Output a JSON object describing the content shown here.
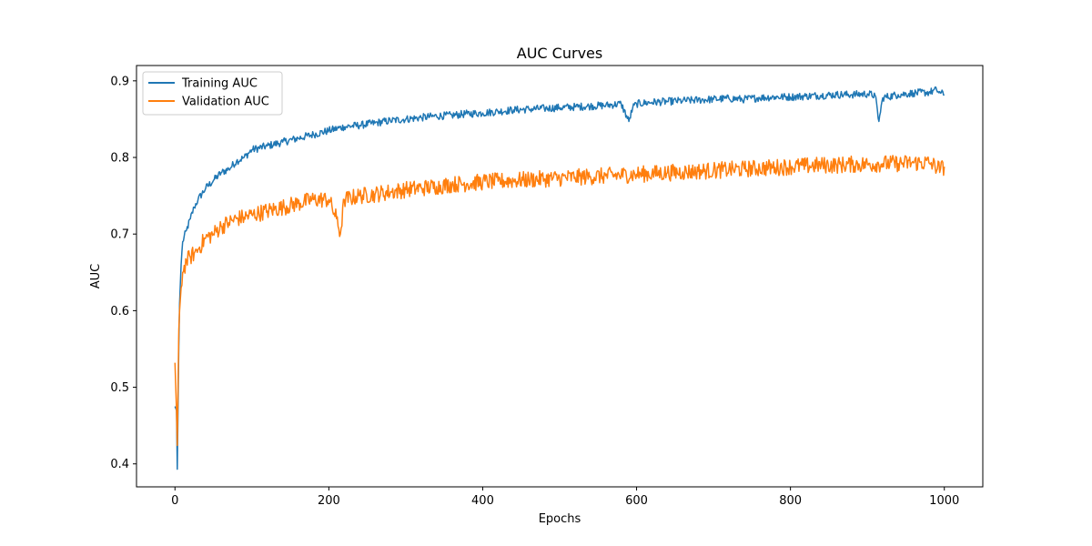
{
  "chart_data": {
    "type": "line",
    "title": "AUC Curves",
    "xlabel": "Epochs",
    "ylabel": "AUC",
    "xlim": [
      -50,
      1050
    ],
    "ylim": [
      0.37,
      0.92
    ],
    "xticks": [
      0,
      200,
      400,
      600,
      800,
      1000
    ],
    "xtick_labels": [
      "0",
      "200",
      "400",
      "600",
      "800",
      "1000"
    ],
    "yticks": [
      0.4,
      0.5,
      0.6,
      0.7,
      0.8,
      0.9
    ],
    "ytick_labels": [
      "0.4",
      "0.5",
      "0.6",
      "0.7",
      "0.8",
      "0.9"
    ],
    "grid": false,
    "legend_position": "top-left",
    "series": [
      {
        "name": "Training AUC",
        "color": "#1f77b4",
        "x": [
          0,
          2,
          3,
          5,
          6,
          8,
          10,
          15,
          20,
          25,
          30,
          40,
          50,
          60,
          70,
          80,
          90,
          100,
          120,
          140,
          160,
          180,
          200,
          220,
          240,
          260,
          280,
          300,
          320,
          340,
          360,
          380,
          400,
          420,
          440,
          460,
          480,
          500,
          520,
          540,
          560,
          580,
          590,
          595,
          600,
          620,
          640,
          660,
          680,
          700,
          720,
          740,
          760,
          780,
          800,
          820,
          840,
          860,
          880,
          900,
          910,
          915,
          920,
          940,
          960,
          980,
          990,
          995,
          1000
        ],
        "y": [
          0.475,
          0.47,
          0.393,
          0.555,
          0.61,
          0.66,
          0.69,
          0.705,
          0.72,
          0.735,
          0.745,
          0.76,
          0.77,
          0.78,
          0.785,
          0.795,
          0.8,
          0.81,
          0.815,
          0.82,
          0.825,
          0.83,
          0.835,
          0.84,
          0.842,
          0.845,
          0.848,
          0.85,
          0.852,
          0.854,
          0.855,
          0.857,
          0.858,
          0.86,
          0.862,
          0.863,
          0.864,
          0.865,
          0.866,
          0.867,
          0.868,
          0.87,
          0.847,
          0.865,
          0.87,
          0.872,
          0.873,
          0.874,
          0.875,
          0.876,
          0.877,
          0.876,
          0.878,
          0.879,
          0.879,
          0.88,
          0.881,
          0.882,
          0.882,
          0.883,
          0.881,
          0.847,
          0.878,
          0.882,
          0.884,
          0.885,
          0.888,
          0.884,
          0.882
        ]
      },
      {
        "name": "Validation AUC",
        "color": "#ff7f0e",
        "x": [
          0,
          2,
          3,
          5,
          6,
          8,
          10,
          15,
          20,
          25,
          30,
          40,
          50,
          60,
          70,
          80,
          90,
          100,
          120,
          140,
          160,
          180,
          200,
          210,
          215,
          220,
          240,
          260,
          280,
          300,
          320,
          340,
          360,
          380,
          400,
          420,
          440,
          460,
          480,
          500,
          520,
          540,
          560,
          580,
          600,
          620,
          640,
          660,
          680,
          700,
          720,
          740,
          760,
          780,
          800,
          820,
          840,
          860,
          880,
          900,
          920,
          940,
          960,
          980,
          995,
          1000
        ],
        "y": [
          0.532,
          0.47,
          0.424,
          0.575,
          0.6,
          0.63,
          0.65,
          0.665,
          0.67,
          0.675,
          0.68,
          0.695,
          0.7,
          0.71,
          0.715,
          0.72,
          0.722,
          0.725,
          0.73,
          0.735,
          0.74,
          0.745,
          0.745,
          0.72,
          0.7,
          0.745,
          0.75,
          0.752,
          0.755,
          0.758,
          0.76,
          0.762,
          0.765,
          0.766,
          0.768,
          0.769,
          0.77,
          0.771,
          0.772,
          0.773,
          0.774,
          0.775,
          0.776,
          0.777,
          0.778,
          0.779,
          0.78,
          0.781,
          0.782,
          0.783,
          0.784,
          0.785,
          0.786,
          0.787,
          0.788,
          0.789,
          0.79,
          0.79,
          0.791,
          0.791,
          0.792,
          0.792,
          0.793,
          0.793,
          0.785,
          0.788
        ]
      }
    ]
  }
}
